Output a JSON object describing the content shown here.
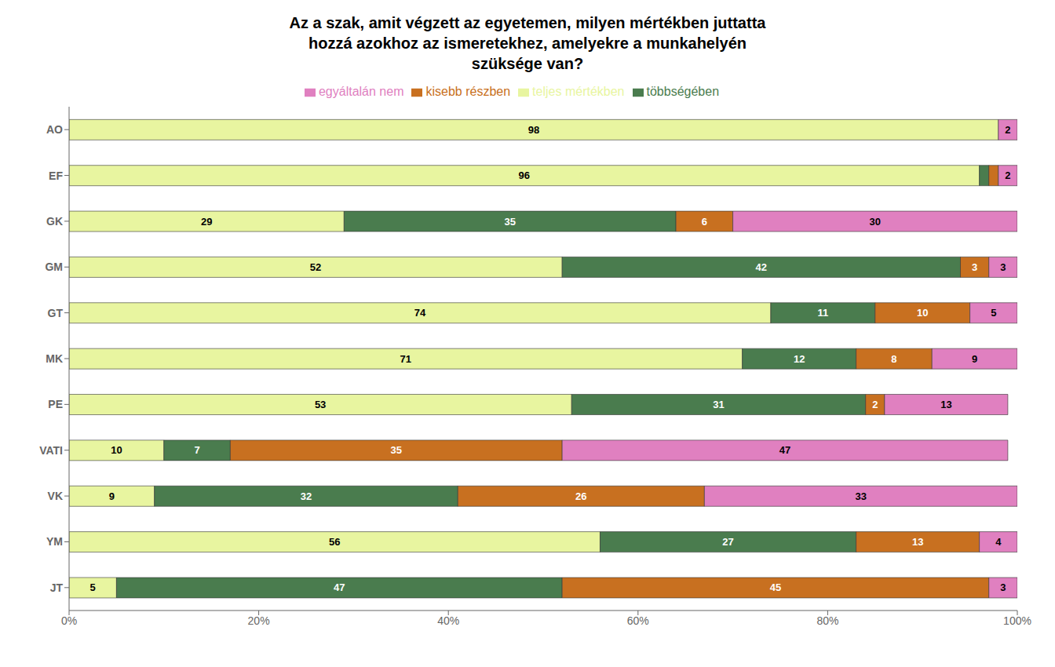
{
  "chart_data": {
    "type": "bar",
    "orientation": "horizontal",
    "stacked": true,
    "title": "Az a szak, amit végzett az egyetemen, milyen mértékben juttatta\nhozzá azokhoz az ismeretekhez, amelyekre a munkahelyén\nszüksége van?",
    "categories": [
      "AO",
      "EF",
      "GK",
      "GM",
      "GT",
      "MK",
      "PE",
      "VATI",
      "VK",
      "YM",
      "JT"
    ],
    "series": [
      {
        "name": "teljes mértékben",
        "color": "#e8f5a0",
        "values": [
          98,
          96,
          29,
          52,
          74,
          71,
          53,
          10,
          9,
          56,
          5
        ]
      },
      {
        "name": "többségében",
        "color": "#4a7c4e",
        "values": [
          0,
          1,
          35,
          42,
          11,
          12,
          31,
          7,
          32,
          27,
          47
        ],
        "value_labels": [
          null,
          null,
          "35",
          "42",
          "11",
          "12",
          "31",
          "7",
          "32",
          "27",
          "47"
        ]
      },
      {
        "name": "kisebb részben",
        "color": "#c87020",
        "values": [
          0,
          1,
          6,
          3,
          10,
          8,
          2,
          35,
          26,
          13,
          45
        ],
        "value_labels": [
          null,
          null,
          "6",
          "3",
          "10",
          "8",
          "2",
          "35",
          "26",
          "13",
          "45"
        ]
      },
      {
        "name": "egyáltalán nem",
        "color": "#e080c0",
        "values": [
          2,
          2,
          30,
          3,
          5,
          9,
          13,
          47,
          33,
          4,
          3
        ]
      }
    ],
    "xlim": [
      0,
      100
    ],
    "xticks": [
      {
        "value": 0,
        "label": "0%"
      },
      {
        "value": 20,
        "label": "20%"
      },
      {
        "value": 40,
        "label": "40%"
      },
      {
        "value": 60,
        "label": "60%"
      },
      {
        "value": 80,
        "label": "80%"
      },
      {
        "value": 100,
        "label": "100%"
      }
    ],
    "grid": false,
    "legend": "top",
    "data_labels": true
  }
}
